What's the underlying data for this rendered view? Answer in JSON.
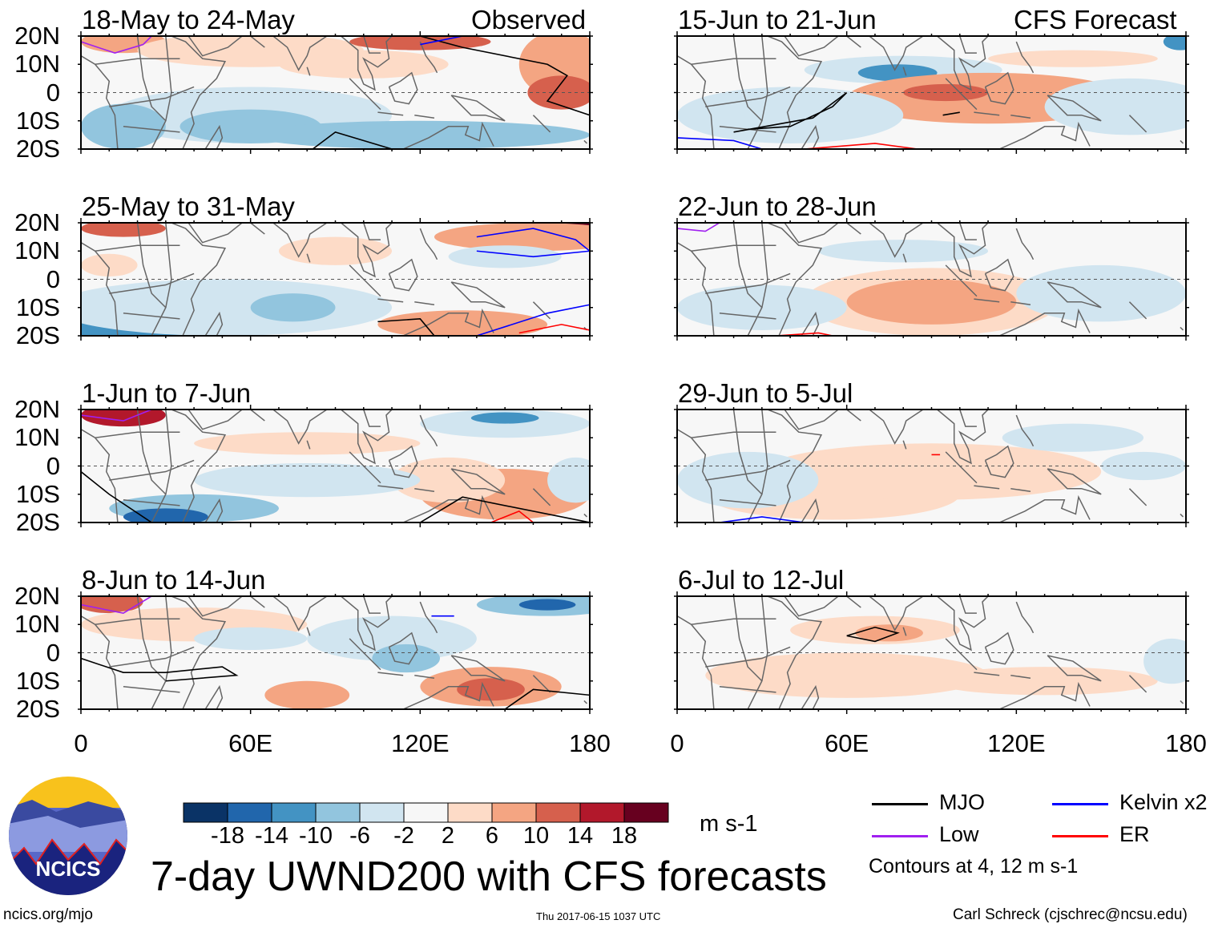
{
  "figure": {
    "title": "7-day UWND200 with CFS forecasts",
    "url": "ncics.org/mjo",
    "timestamp": "Thu 2017-06-15 1037 UTC",
    "author": "Carl Schreck (cjschrec@ncsu.edu)",
    "logo_text": "NCICS",
    "observed_label": "Observed",
    "forecast_label": "CFS Forecast"
  },
  "chart_data": {
    "type": "heatmap",
    "variable": "200-hPa zonal wind anomaly",
    "units": "m s-1",
    "lat_ticks": [
      "20N",
      "10N",
      "0",
      "10S",
      "20S"
    ],
    "lon_ticks": [
      "0",
      "60E",
      "120E",
      "180"
    ],
    "lon_range": [
      0,
      180
    ],
    "lat_range": [
      -20,
      20
    ],
    "colorbar": {
      "ticks": [
        "-18",
        "-14",
        "-10",
        "-6",
        "-2",
        "2",
        "6",
        "10",
        "14",
        "18"
      ],
      "colors": [
        "#0a3366",
        "#2166ac",
        "#4393c3",
        "#92c5de",
        "#d1e5f0",
        "#f7f7f7",
        "#fddbc7",
        "#f4a582",
        "#d6604d",
        "#b2182b",
        "#67001f"
      ]
    },
    "legend": {
      "items": [
        {
          "label": "MJO",
          "color": "#000000"
        },
        {
          "label": "Kelvin x2",
          "color": "#0000ff"
        },
        {
          "label": "Low",
          "color": "#a020f0"
        },
        {
          "label": "ER",
          "color": "#ff0000"
        }
      ],
      "note": "Contours at 4, 12 m s-1"
    },
    "panels": [
      {
        "title": "18-May to 24-May",
        "column": "observed"
      },
      {
        "title": "25-May to 31-May",
        "column": "observed"
      },
      {
        "title": "1-Jun to 7-Jun",
        "column": "observed"
      },
      {
        "title": "8-Jun to 14-Jun",
        "column": "observed"
      },
      {
        "title": "15-Jun to 21-Jun",
        "column": "forecast"
      },
      {
        "title": "22-Jun to 28-Jun",
        "column": "forecast"
      },
      {
        "title": "29-Jun to 5-Jul",
        "column": "forecast"
      },
      {
        "title": "6-Jul to 12-Jul",
        "column": "forecast"
      }
    ]
  }
}
